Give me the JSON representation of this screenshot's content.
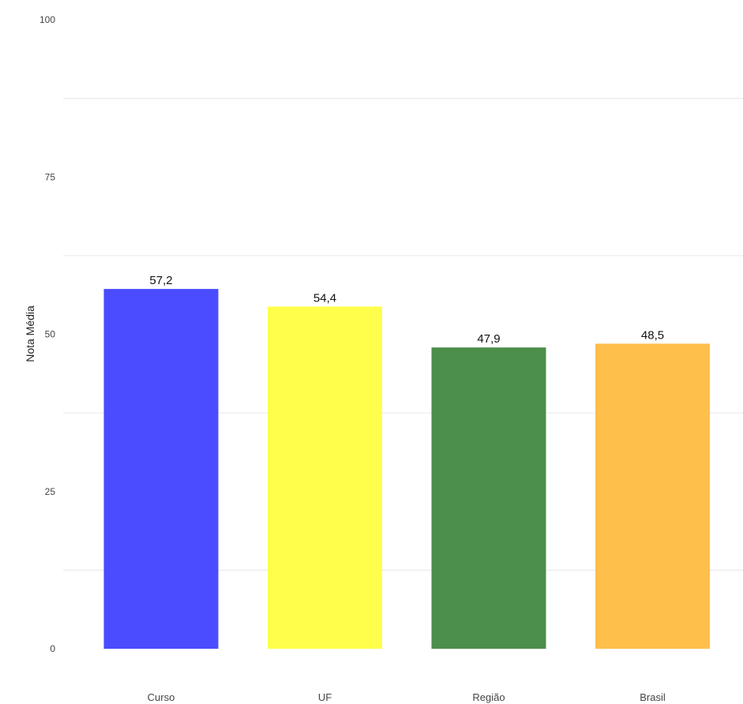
{
  "chart_data": {
    "type": "bar",
    "title": "",
    "xlabel": "",
    "ylabel": "Nota Média",
    "categories": [
      "Curso",
      "UF",
      "Região",
      "Brasil"
    ],
    "values": [
      57.2,
      54.4,
      47.9,
      48.5
    ],
    "value_labels": [
      "57,2",
      "54,4",
      "47,9",
      "48,5"
    ],
    "colors": [
      "#4b4bff",
      "#ffff4b",
      "#4b8f4b",
      "#ffbf4b"
    ],
    "ylim": [
      0,
      100
    ],
    "yticks": [
      0,
      25,
      50,
      75,
      100
    ],
    "grid": true,
    "legend": "none"
  }
}
